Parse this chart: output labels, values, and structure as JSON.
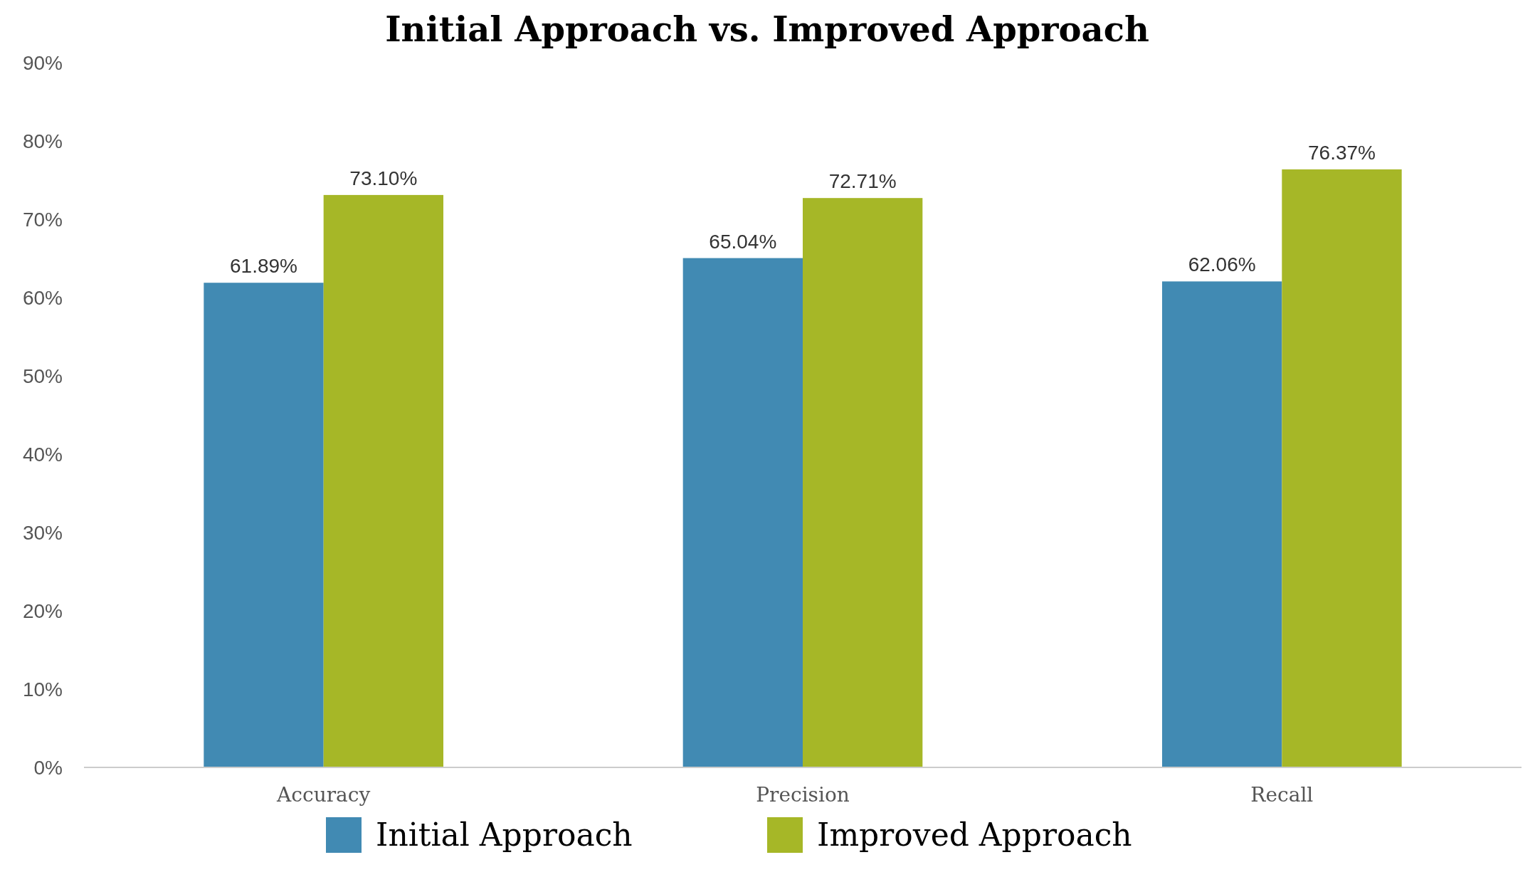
{
  "chart_data": {
    "type": "bar",
    "title": "Initial Approach vs. Improved Approach",
    "categories": [
      "Accuracy",
      "Precision",
      "Recall"
    ],
    "series": [
      {
        "name": "Initial Approach",
        "color": "#418ab3",
        "values": [
          61.89,
          65.04,
          62.06
        ],
        "value_labels": [
          "61.89%",
          "65.04%",
          "62.06%"
        ]
      },
      {
        "name": "Improved Approach",
        "color": "#a6b727",
        "values": [
          73.1,
          72.71,
          76.37
        ],
        "value_labels": [
          "73.10%",
          "72.71%",
          "76.37%"
        ]
      }
    ],
    "ylim": [
      0,
      90
    ],
    "yticks": [
      {
        "value": 0,
        "label": "0%"
      },
      {
        "value": 10,
        "label": "10%"
      },
      {
        "value": 20,
        "label": "20%"
      },
      {
        "value": 30,
        "label": "30%"
      },
      {
        "value": 40,
        "label": "40%"
      },
      {
        "value": 50,
        "label": "50%"
      },
      {
        "value": 60,
        "label": "60%"
      },
      {
        "value": 70,
        "label": "70%"
      },
      {
        "value": 80,
        "label": "80%"
      },
      {
        "value": 90,
        "label": "90%"
      }
    ],
    "grid": false,
    "legend": "bottom"
  }
}
